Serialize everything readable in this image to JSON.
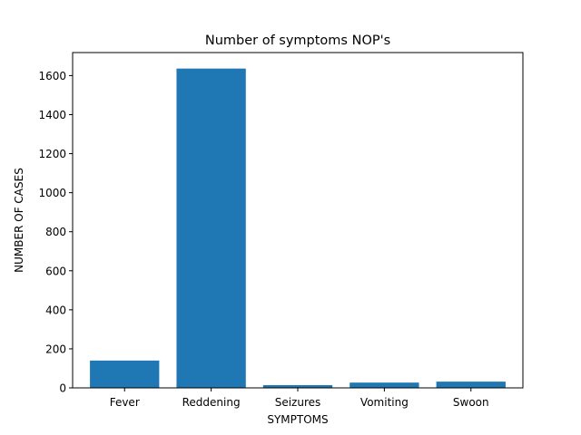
{
  "chart_data": {
    "type": "bar",
    "title": "Number of symptoms NOP's",
    "xlabel": "SYMPTOMS",
    "ylabel": "NUMBER OF CASES",
    "categories": [
      "Fever",
      "Reddening",
      "Seizures",
      "Vomiting",
      "Swoon"
    ],
    "values": [
      140,
      1636,
      14,
      27,
      32
    ],
    "ylim": [
      0,
      1718
    ],
    "yticks": [
      0,
      200,
      400,
      600,
      800,
      1000,
      1200,
      1400,
      1600
    ],
    "bar_color": "#1f77b4",
    "grid": false
  }
}
